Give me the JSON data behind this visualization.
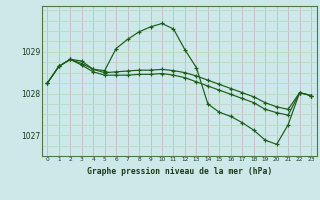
{
  "title": "Graphe pression niveau de la mer (hPa)",
  "bg_color": "#cce8e8",
  "grid_color_v": "#b8d8d8",
  "grid_color_h": "#c0d8c8",
  "line_color": "#1a5c1a",
  "xlim": [
    -0.5,
    23.5
  ],
  "ylim": [
    1026.5,
    1030.1
  ],
  "yticks": [
    1027,
    1028,
    1029
  ],
  "xticks": [
    0,
    1,
    2,
    3,
    4,
    5,
    6,
    7,
    8,
    9,
    10,
    11,
    12,
    13,
    14,
    15,
    16,
    17,
    18,
    19,
    20,
    21,
    22,
    23
  ],
  "series": [
    {
      "x": [
        0,
        1,
        2,
        3,
        4,
        5,
        6,
        7,
        8,
        9,
        10,
        11,
        12,
        13,
        14,
        15,
        16,
        17,
        18,
        19,
        20,
        21,
        22,
        23
      ],
      "y": [
        1028.25,
        1028.65,
        1028.82,
        1028.78,
        1028.58,
        1028.55,
        1029.08,
        1029.3,
        1029.48,
        1029.6,
        1029.68,
        1029.55,
        1029.05,
        1028.62,
        1027.75,
        1027.55,
        1027.45,
        1027.3,
        1027.12,
        1026.88,
        1026.78,
        1027.25,
        1028.02,
        1027.95
      ]
    },
    {
      "x": [
        0,
        1,
        2,
        3,
        4,
        5,
        6,
        7,
        8,
        9,
        10,
        11,
        12,
        13,
        14,
        15,
        16,
        17,
        18,
        19,
        20,
        21,
        22,
        23
      ],
      "y": [
        1028.25,
        1028.65,
        1028.82,
        1028.72,
        1028.58,
        1028.5,
        1028.52,
        1028.54,
        1028.56,
        1028.56,
        1028.58,
        1028.55,
        1028.5,
        1028.42,
        1028.32,
        1028.22,
        1028.12,
        1028.02,
        1027.92,
        1027.78,
        1027.68,
        1027.62,
        1028.02,
        1027.95
      ]
    },
    {
      "x": [
        0,
        1,
        2,
        3,
        4,
        5,
        6,
        7,
        8,
        9,
        10,
        11,
        12,
        13,
        14,
        15,
        16,
        17,
        18,
        19,
        20,
        21,
        22,
        23
      ],
      "y": [
        1028.25,
        1028.65,
        1028.82,
        1028.68,
        1028.52,
        1028.44,
        1028.44,
        1028.44,
        1028.46,
        1028.46,
        1028.48,
        1028.44,
        1028.38,
        1028.28,
        1028.18,
        1028.08,
        1027.98,
        1027.88,
        1027.78,
        1027.62,
        1027.54,
        1027.48,
        1028.02,
        1027.95
      ]
    }
  ]
}
